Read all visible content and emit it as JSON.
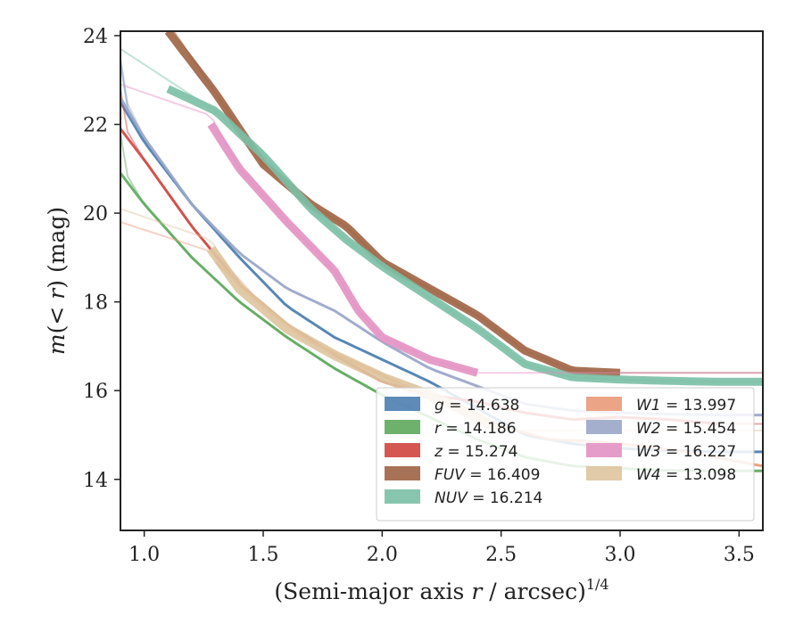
{
  "chart_data": {
    "type": "line",
    "xlabel": "(Semi-major axis r / arcsec)",
    "xlabel_parts": {
      "pre": "(Semi-major axis ",
      "var": "r",
      "post": " / arcsec)",
      "sup": "1/4"
    },
    "ylabel": "m(< r) (mag)",
    "ylabel_parts": {
      "m": "m",
      "paren_open": "(",
      "lt": "< ",
      "r": "r",
      "paren_close": ")",
      "unit": " (mag)"
    },
    "xlim": [
      0.9,
      3.6
    ],
    "ylim": [
      24.1,
      12.85
    ],
    "y_inverted": true,
    "xticks": [
      1.0,
      1.5,
      2.0,
      2.5,
      3.0,
      3.5
    ],
    "xtick_labels": [
      "1.0",
      "1.5",
      "2.0",
      "2.5",
      "3.0",
      "3.5"
    ],
    "yticks": [
      14,
      16,
      18,
      20,
      22,
      24
    ],
    "ytick_labels": [
      "14",
      "16",
      "18",
      "20",
      "22",
      "24"
    ],
    "grid": false,
    "legend_position": "lower-right",
    "series": [
      {
        "name": "g = 14.638",
        "sym": "g",
        "val": "14.638",
        "color": "#4c7eb0",
        "width": 3,
        "range": [
          0.9,
          3.6
        ],
        "xfit": 3.6,
        "points": [
          [
            0.9,
            22.5
          ],
          [
            1.0,
            21.6
          ],
          [
            1.2,
            20.2
          ],
          [
            1.4,
            19.0
          ],
          [
            1.6,
            17.9
          ],
          [
            1.8,
            17.2
          ],
          [
            2.0,
            16.7
          ],
          [
            2.2,
            16.2
          ],
          [
            2.4,
            15.6
          ],
          [
            2.6,
            15.0
          ],
          [
            2.8,
            14.8
          ],
          [
            3.0,
            14.7
          ],
          [
            3.2,
            14.65
          ],
          [
            3.4,
            14.62
          ],
          [
            3.6,
            14.62
          ]
        ]
      },
      {
        "name": "r = 14.186",
        "sym": "r",
        "val": "14.186",
        "color": "#5da95d",
        "width": 3,
        "range": [
          0.9,
          3.6
        ],
        "xfit": 3.6,
        "points": [
          [
            0.9,
            20.9
          ],
          [
            1.0,
            20.2
          ],
          [
            1.2,
            19.0
          ],
          [
            1.4,
            18.0
          ],
          [
            1.6,
            17.2
          ],
          [
            1.8,
            16.5
          ],
          [
            2.0,
            15.9
          ],
          [
            2.2,
            15.4
          ],
          [
            2.4,
            14.9
          ],
          [
            2.6,
            14.5
          ],
          [
            2.8,
            14.3
          ],
          [
            3.0,
            14.25
          ],
          [
            3.2,
            14.2
          ],
          [
            3.4,
            14.19
          ],
          [
            3.6,
            14.19
          ]
        ]
      },
      {
        "name": "z = 15.274",
        "sym": "z",
        "val": "15.274",
        "color": "#d0453f",
        "width": 3,
        "range": [
          0.9,
          3.42
        ],
        "xfit": 3.6,
        "points": [
          [
            0.9,
            21.9
          ],
          [
            1.0,
            21.2
          ],
          [
            1.2,
            19.7
          ],
          [
            1.4,
            18.4
          ],
          [
            1.6,
            17.5
          ],
          [
            1.8,
            16.8
          ],
          [
            2.0,
            16.2
          ],
          [
            2.2,
            15.9
          ],
          [
            2.4,
            15.75
          ],
          [
            2.6,
            15.5
          ],
          [
            2.8,
            15.35
          ],
          [
            3.0,
            15.4
          ],
          [
            3.2,
            15.35
          ],
          [
            3.42,
            15.25
          ]
        ]
      },
      {
        "name": "FUV = 16.409",
        "sym": "FUV",
        "val": "16.409",
        "color": "#9e6344",
        "width": 9,
        "range": [
          1.1,
          3.0
        ],
        "xfit": 3.6,
        "points": [
          [
            1.1,
            24.1
          ],
          [
            1.3,
            22.7
          ],
          [
            1.5,
            21.1
          ],
          [
            1.7,
            20.2
          ],
          [
            1.85,
            19.7
          ],
          [
            2.0,
            18.9
          ],
          [
            2.2,
            18.3
          ],
          [
            2.4,
            17.7
          ],
          [
            2.6,
            16.9
          ],
          [
            2.8,
            16.45
          ],
          [
            3.0,
            16.4
          ]
        ]
      },
      {
        "name": "NUV = 16.214",
        "sym": "NUV",
        "val": "16.214",
        "color": "#7bbfa5",
        "width": 9,
        "range": [
          1.1,
          3.6
        ],
        "xfit": 3.6,
        "points": [
          [
            1.1,
            22.8
          ],
          [
            1.3,
            22.3
          ],
          [
            1.5,
            21.3
          ],
          [
            1.7,
            20.1
          ],
          [
            1.85,
            19.4
          ],
          [
            2.0,
            18.8
          ],
          [
            2.2,
            18.1
          ],
          [
            2.4,
            17.4
          ],
          [
            2.6,
            16.6
          ],
          [
            2.8,
            16.3
          ],
          [
            3.0,
            16.25
          ],
          [
            3.2,
            16.22
          ],
          [
            3.4,
            16.2
          ],
          [
            3.6,
            16.2
          ]
        ]
      },
      {
        "name": "W1 = 13.997",
        "sym": "W1",
        "val": "13.997",
        "color": "#e99a79",
        "width": 3,
        "range": [
          1.3,
          3.6
        ],
        "xfit": 3.6,
        "points": [
          [
            1.3,
            18.9
          ],
          [
            1.5,
            17.9
          ],
          [
            1.7,
            17.1
          ],
          [
            1.9,
            16.6
          ],
          [
            2.1,
            16.1
          ],
          [
            2.3,
            15.7
          ],
          [
            2.5,
            15.2
          ],
          [
            2.7,
            14.9
          ],
          [
            2.9,
            14.85
          ],
          [
            3.1,
            14.75
          ],
          [
            3.3,
            14.6
          ],
          [
            3.5,
            14.4
          ],
          [
            3.6,
            14.3
          ]
        ]
      },
      {
        "name": "W2 = 15.454",
        "sym": "W2",
        "val": "15.454",
        "color": "#9aa6c9",
        "width": 3,
        "range": [
          0.9,
          3.6
        ],
        "xfit": 3.6,
        "points": [
          [
            0.9,
            22.6
          ],
          [
            1.0,
            21.7
          ],
          [
            1.2,
            20.2
          ],
          [
            1.4,
            19.1
          ],
          [
            1.6,
            18.3
          ],
          [
            1.8,
            17.8
          ],
          [
            2.0,
            17.1
          ],
          [
            2.2,
            16.5
          ],
          [
            2.4,
            16.1
          ],
          [
            2.6,
            15.7
          ],
          [
            2.8,
            15.55
          ],
          [
            3.0,
            15.5
          ],
          [
            3.2,
            15.47
          ],
          [
            3.4,
            15.45
          ],
          [
            3.6,
            15.45
          ]
        ]
      },
      {
        "name": "W3 = 16.227",
        "sym": "W3",
        "val": "16.227",
        "color": "#e391c2",
        "width": 9,
        "range": [
          1.28,
          2.4
        ],
        "xfit": 3.6,
        "points": [
          [
            1.28,
            22.0
          ],
          [
            1.4,
            21.0
          ],
          [
            1.6,
            19.8
          ],
          [
            1.8,
            18.7
          ],
          [
            1.9,
            17.8
          ],
          [
            2.0,
            17.2
          ],
          [
            2.2,
            16.7
          ],
          [
            2.4,
            16.4
          ]
        ]
      },
      {
        "name": "W4 = 13.098",
        "sym": "W4",
        "val": "13.098",
        "color": "#dec49f",
        "width": 11,
        "range": [
          1.28,
          2.5
        ],
        "xfit": 3.6,
        "points": [
          [
            1.28,
            19.2
          ],
          [
            1.4,
            18.3
          ],
          [
            1.6,
            17.4
          ],
          [
            1.8,
            16.8
          ],
          [
            2.0,
            16.3
          ],
          [
            2.2,
            15.9
          ],
          [
            2.4,
            15.4
          ],
          [
            2.5,
            15.1
          ]
        ]
      }
    ]
  }
}
